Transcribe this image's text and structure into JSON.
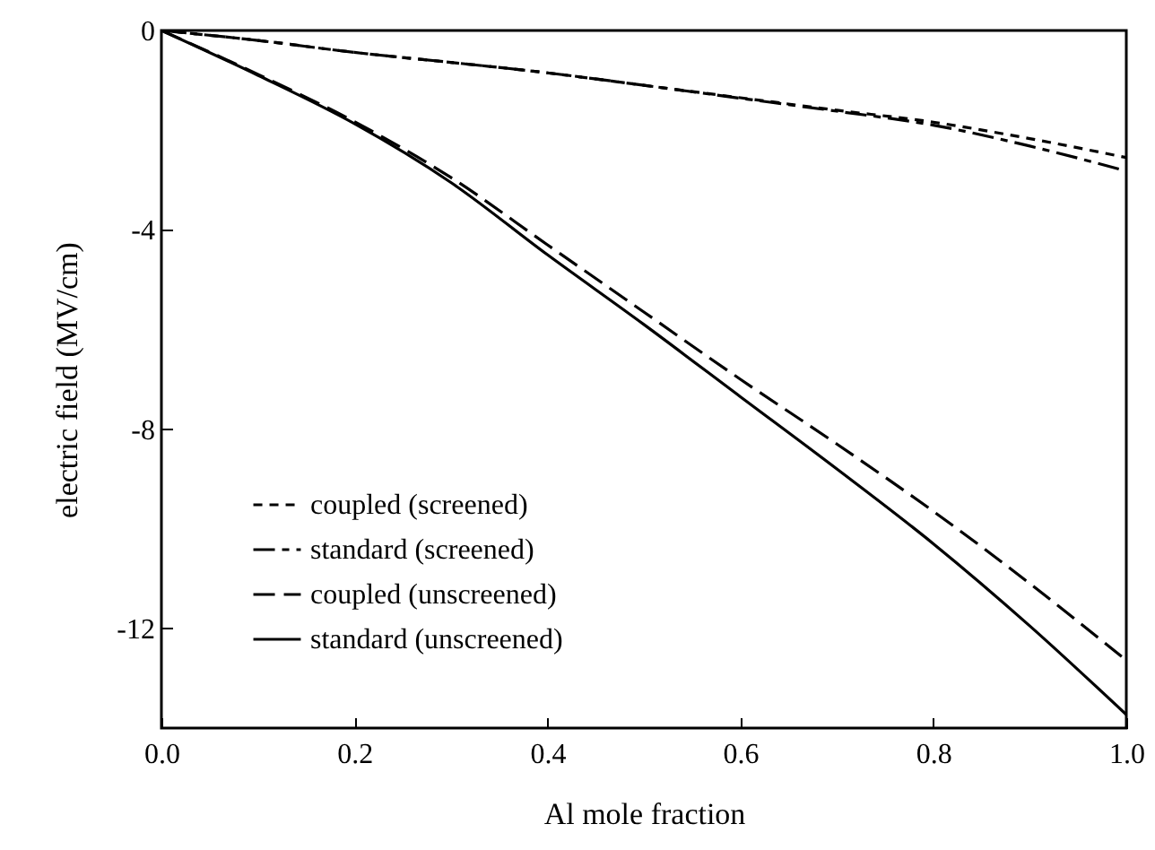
{
  "chart_data": {
    "type": "line",
    "xlabel": "Al mole fraction",
    "ylabel": "electric field (MV/cm)",
    "x": [
      0,
      0.1,
      0.2,
      0.3,
      0.4,
      0.5,
      0.6,
      0.7,
      0.8,
      0.9,
      1.0
    ],
    "series": [
      {
        "name": "coupled (screened)",
        "color": "#000000",
        "line_style": "dotted",
        "values": [
          0,
          -0.2,
          -0.44,
          -0.64,
          -0.85,
          -1.1,
          -1.35,
          -1.6,
          -1.84,
          -2.17,
          -2.55
        ]
      },
      {
        "name": "standard (screened)",
        "color": "#000000",
        "line_style": "dashdot",
        "values": [
          0,
          -0.2,
          -0.44,
          -0.64,
          -0.85,
          -1.1,
          -1.36,
          -1.62,
          -1.9,
          -2.32,
          -2.82
        ]
      },
      {
        "name": "coupled (unscreened)",
        "color": "#000000",
        "line_style": "dashed",
        "values": [
          0,
          -0.88,
          -1.83,
          -2.95,
          -4.3,
          -5.65,
          -7.0,
          -8.3,
          -9.65,
          -11.1,
          -12.64
        ]
      },
      {
        "name": "standard (unscreened)",
        "color": "#000000",
        "line_style": "solid",
        "values": [
          0,
          -0.9,
          -1.87,
          -3.05,
          -4.5,
          -5.9,
          -7.35,
          -8.8,
          -10.3,
          -11.95,
          -13.73
        ]
      }
    ],
    "xlim": [
      0,
      1.0
    ],
    "ylim": [
      -14,
      0
    ],
    "xticks": [
      {
        "value": 0,
        "label": "0.0"
      },
      0.2,
      0.4,
      0.6,
      0.8,
      {
        "value": 1,
        "label": "1.0"
      }
    ],
    "yticks": [
      0,
      -4,
      -8,
      -12
    ],
    "grid": false,
    "legend": "bottom left",
    "marker": "none"
  }
}
